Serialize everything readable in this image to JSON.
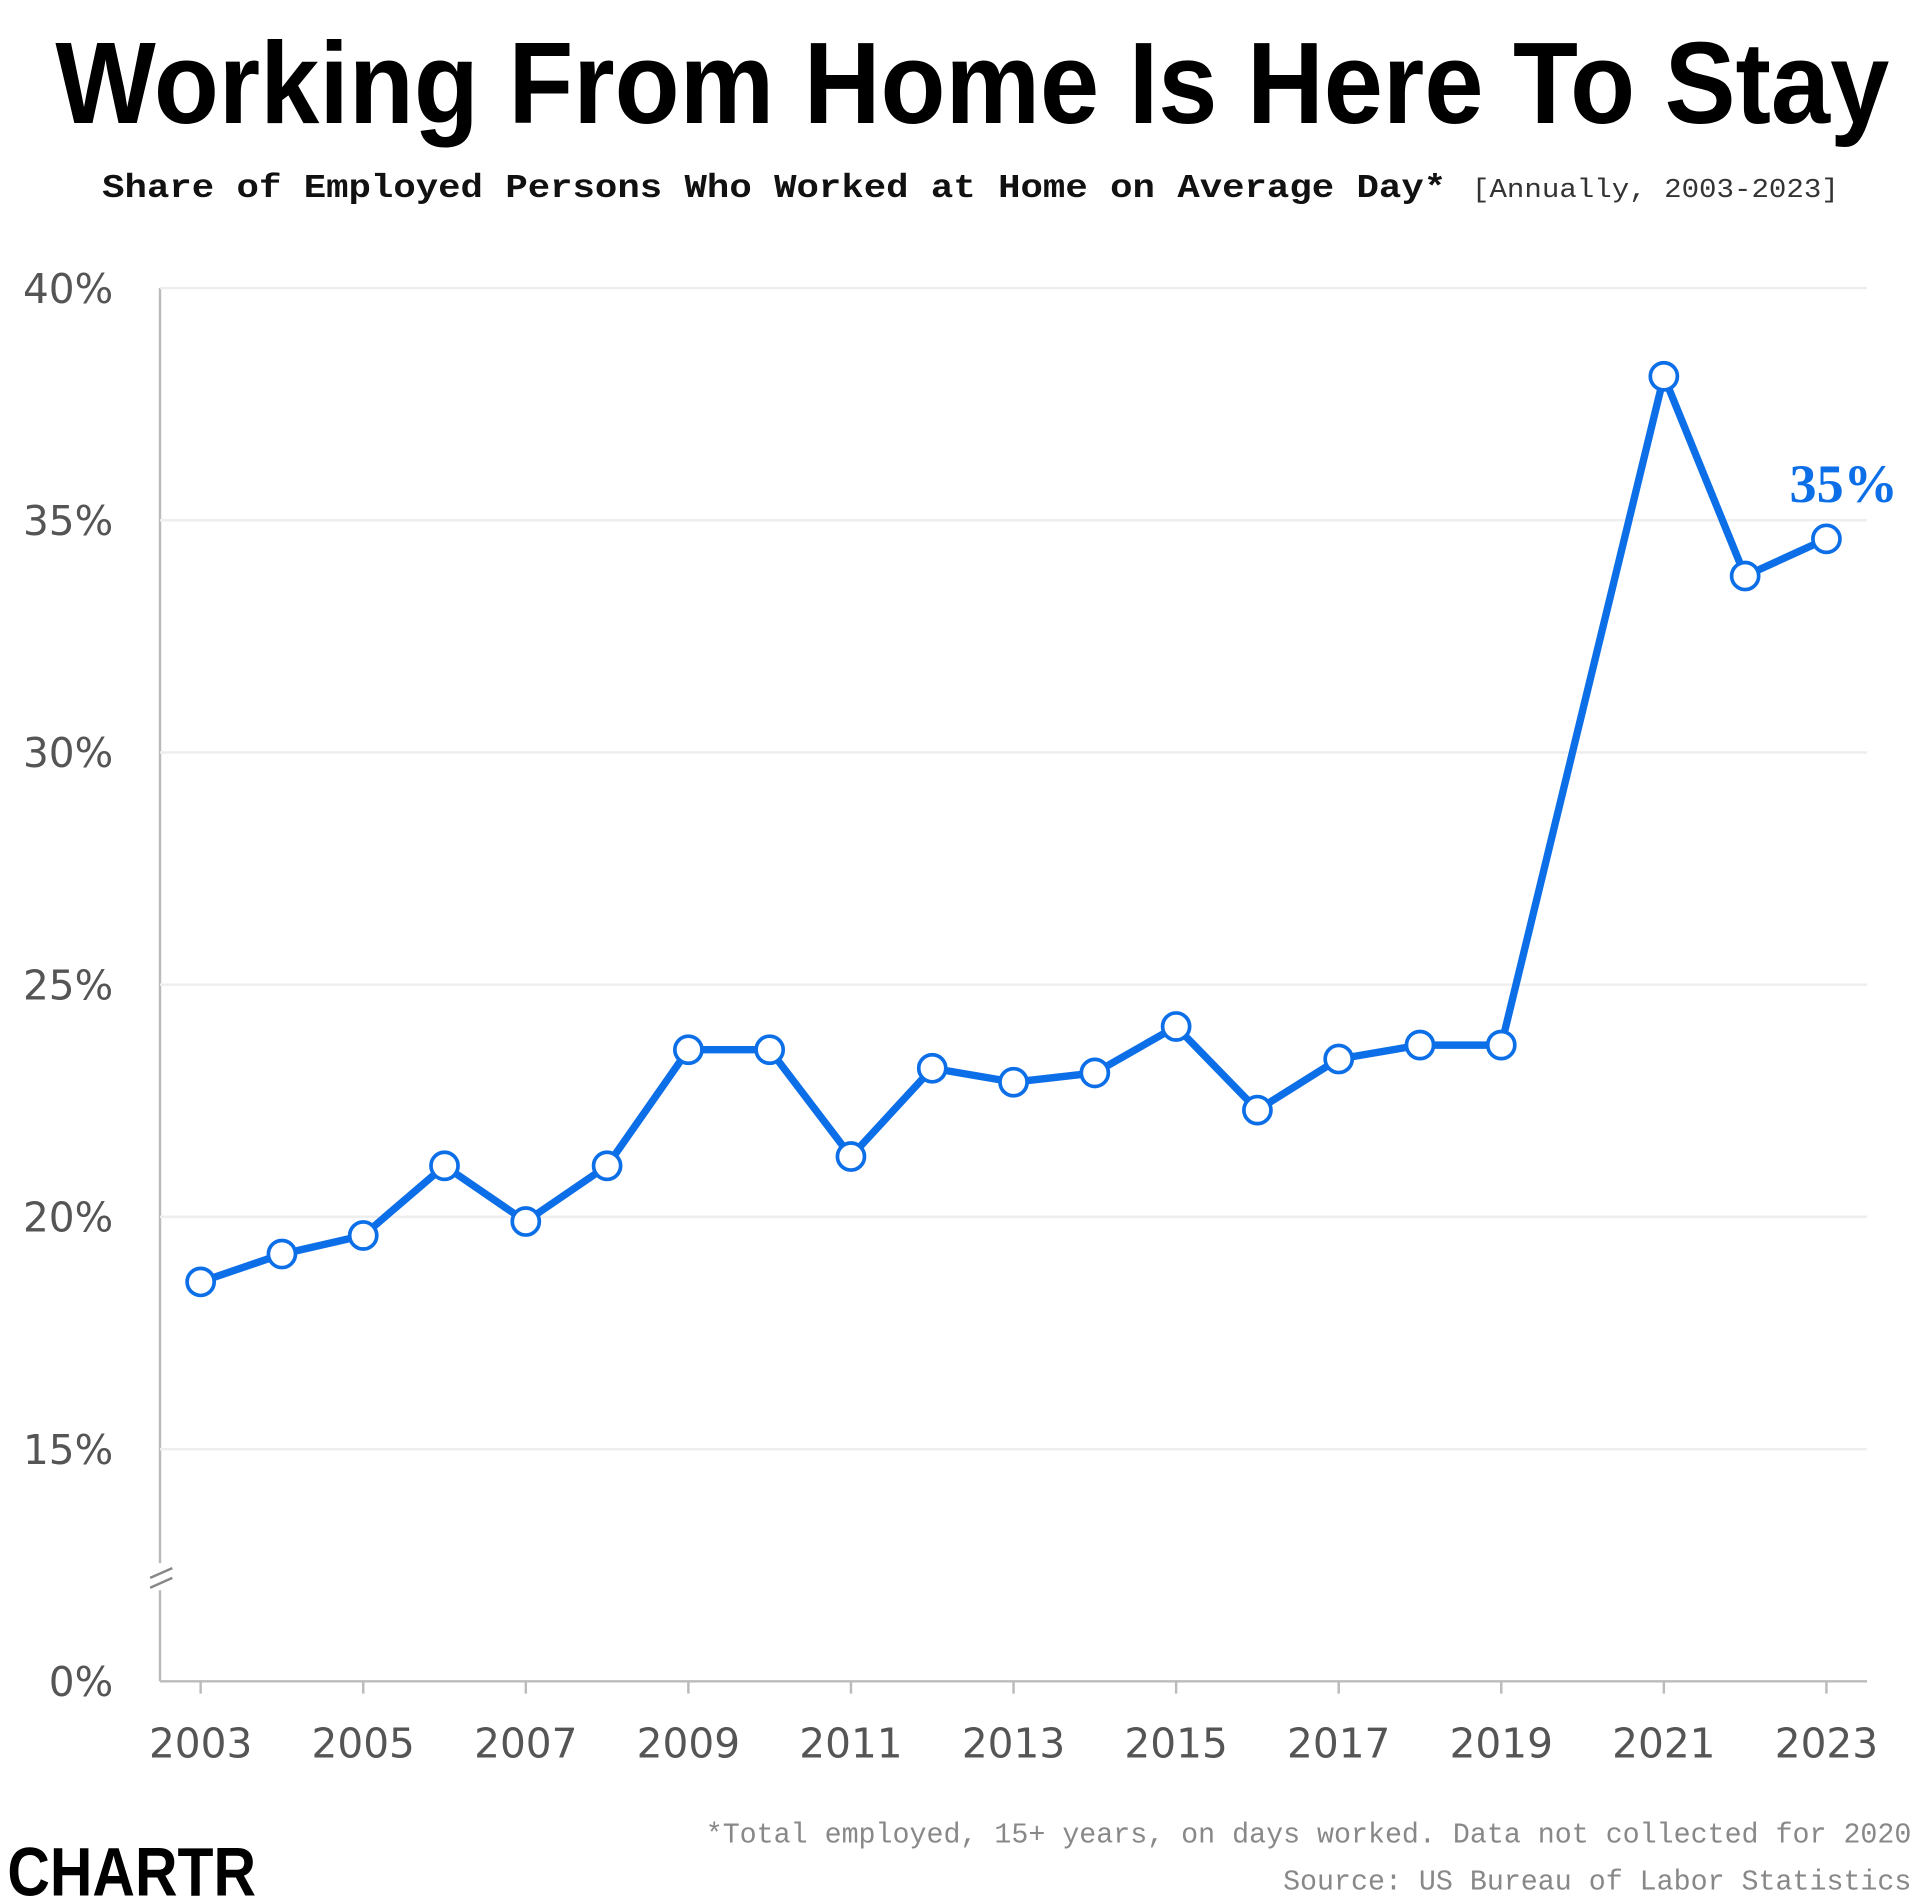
{
  "chart_data": {
    "type": "line",
    "title": "Working From Home Is Here To Stay",
    "subtitle": "Share of Employed Persons Who Worked at Home on Average Day*",
    "subtitle_note": "[Annually, 2003-2023]",
    "footnote": "*Total employed, 15+ years, on days worked. Data not collected for 2020",
    "source": "Source: US Bureau of Labor Statistics",
    "logo": "CHARTR",
    "x": [
      2003,
      2004,
      2005,
      2006,
      2007,
      2008,
      2009,
      2010,
      2011,
      2012,
      2013,
      2014,
      2015,
      2016,
      2017,
      2018,
      2019,
      2021,
      2022,
      2023
    ],
    "series": [
      {
        "name": "Share working at home",
        "color": "#0d6fe8",
        "values": [
          18.6,
          19.2,
          19.6,
          21.1,
          19.9,
          21.1,
          23.6,
          23.6,
          21.3,
          23.2,
          22.9,
          23.1,
          24.1,
          22.3,
          23.4,
          23.7,
          23.7,
          38.1,
          33.8,
          34.6
        ],
        "value_labels": [
          null,
          null,
          null,
          null,
          null,
          null,
          null,
          null,
          null,
          null,
          null,
          null,
          null,
          null,
          null,
          null,
          null,
          null,
          null,
          "35%"
        ]
      }
    ],
    "xlim": [
      2002.5,
      2023.5
    ],
    "xticks": [
      2003,
      2005,
      2007,
      2009,
      2011,
      2013,
      2015,
      2017,
      2019,
      2021,
      2023
    ],
    "ylim": [
      0,
      40
    ],
    "y_axis_break": [
      0,
      15
    ],
    "yticks": [
      {
        "value": 0,
        "label": "0%"
      },
      {
        "value": 15,
        "label": "15%"
      },
      {
        "value": 20,
        "label": "20%"
      },
      {
        "value": 25,
        "label": "25%"
      },
      {
        "value": 30,
        "label": "30%"
      },
      {
        "value": 35,
        "label": "35%"
      },
      {
        "value": 40,
        "label": "40%"
      }
    ],
    "grid": true
  }
}
